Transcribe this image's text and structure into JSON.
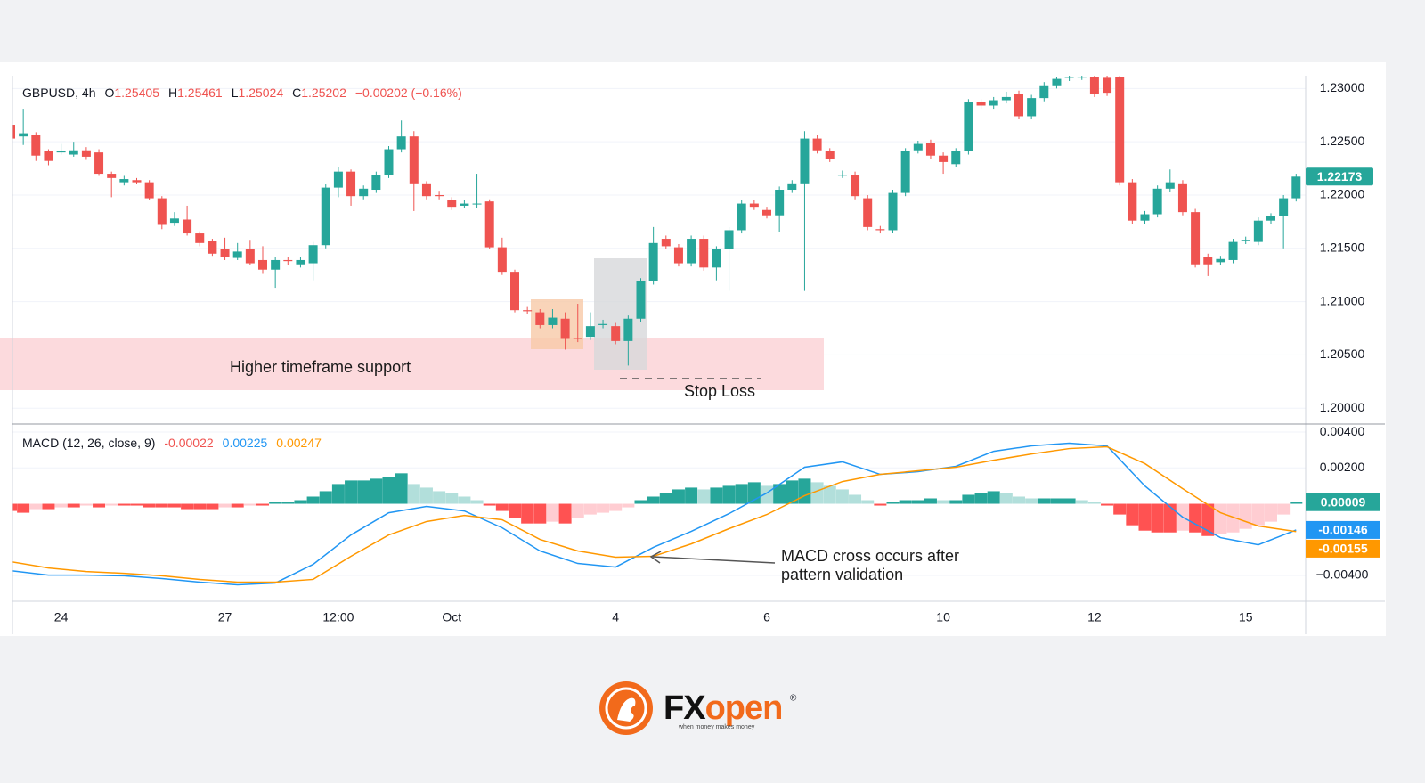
{
  "chart_data": [
    {
      "type": "candlestick",
      "legend": {
        "symbol": "GBPUSD, 4h",
        "ohlc": [
          {
            "label": "O",
            "value": "1.25405"
          },
          {
            "label": "H",
            "value": "1.25461"
          },
          {
            "label": "L",
            "value": "1.25024"
          },
          {
            "label": "C",
            "value": "1.25202"
          }
        ],
        "change": "−0.00202 (−0.16%)"
      },
      "categories": [
        null,
        null,
        null,
        null,
        "24",
        null,
        null,
        null,
        null,
        null,
        null,
        null,
        null,
        null,
        null,
        null,
        null,
        "27",
        null,
        null,
        null,
        null,
        null,
        null,
        null,
        null,
        "12:00",
        null,
        null,
        null,
        null,
        null,
        null,
        null,
        null,
        "Oct",
        null,
        null,
        null,
        null,
        null,
        null,
        null,
        null,
        null,
        null,
        null,
        null,
        "4",
        null,
        null,
        null,
        null,
        null,
        null,
        null,
        null,
        null,
        null,
        null,
        "6",
        null,
        null,
        null,
        null,
        null,
        null,
        null,
        null,
        null,
        null,
        null,
        null,
        null,
        "10",
        null,
        null,
        null,
        null,
        null,
        null,
        null,
        null,
        null,
        null,
        null,
        "12",
        null,
        null,
        null,
        null,
        null,
        null,
        null,
        null,
        null,
        null,
        null,
        "15",
        null,
        null,
        null,
        null
      ],
      "open": [
        1.2266,
        1.2255,
        1.2256,
        1.2241,
        1.224,
        1.2238,
        1.2242,
        1.224,
        1.222,
        1.2212,
        1.2214,
        1.2212,
        1.2197,
        1.2174,
        1.2177,
        1.2164,
        1.2157,
        1.2149,
        1.2141,
        1.2149,
        1.2139,
        1.213,
        1.2139,
        1.2135,
        1.2136,
        1.2153,
        1.2207,
        1.2222,
        1.2199,
        1.2205,
        1.2219,
        1.2243,
        1.2255,
        1.2211,
        1.22,
        1.2195,
        1.219,
        1.2192,
        1.2194,
        1.2151,
        1.2128,
        1.2092,
        1.209,
        1.2078,
        1.2084,
        1.2066,
        1.2067,
        1.2078,
        1.2077,
        1.2063,
        1.2084,
        1.2119,
        1.2159,
        1.2151,
        1.2136,
        1.2159,
        1.2132,
        1.2149,
        1.2167,
        1.2192,
        1.2186,
        1.2181,
        1.2205,
        1.2211,
        1.2253,
        1.2241,
        1.2219,
        1.2219,
        1.2197,
        1.2168,
        1.2167,
        1.2202,
        1.2242,
        1.2249,
        1.2237,
        1.2229,
        1.2241,
        1.2287,
        1.2284,
        1.2289,
        1.2295,
        1.2274,
        1.2291,
        1.2303,
        1.231,
        1.2311,
        1.2311,
        1.231,
        1.2311,
        1.2212,
        1.2176,
        1.2182,
        1.2206,
        1.2211,
        1.2184,
        1.2142,
        1.2137,
        1.2139,
        1.2157,
        1.2156,
        1.2176,
        1.218,
        1.2197
      ],
      "high": [
        1.227,
        1.2281,
        1.2259,
        1.2243,
        1.2248,
        1.225,
        1.2245,
        1.2243,
        1.2222,
        1.2218,
        1.2216,
        1.2214,
        1.2199,
        1.2184,
        1.219,
        1.2166,
        1.2159,
        1.216,
        1.2155,
        1.2158,
        1.2152,
        1.2142,
        1.2142,
        1.2142,
        1.2156,
        1.221,
        1.2226,
        1.2224,
        1.2209,
        1.2222,
        1.2246,
        1.227,
        1.226,
        1.2213,
        1.2204,
        1.2198,
        1.2195,
        1.222,
        1.2196,
        1.216,
        1.213,
        1.2095,
        1.2093,
        1.2093,
        1.209,
        1.2098,
        1.209,
        1.2083,
        1.208,
        1.2087,
        1.2122,
        1.217,
        1.2162,
        1.2154,
        1.2162,
        1.2162,
        1.2152,
        1.217,
        1.2195,
        1.2195,
        1.2189,
        1.2208,
        1.2214,
        1.226,
        1.2256,
        1.2244,
        1.2223,
        1.2222,
        1.22,
        1.2171,
        1.2205,
        1.2244,
        1.2251,
        1.2252,
        1.224,
        1.2244,
        1.229,
        1.229,
        1.2292,
        1.2297,
        1.2298,
        1.2294,
        1.2306,
        1.2311,
        1.2312,
        1.2312,
        1.2312,
        1.2312,
        1.2312,
        1.2215,
        1.2185,
        1.2209,
        1.2224,
        1.2214,
        1.2187,
        1.2145,
        1.2143,
        1.2159,
        1.2161,
        1.2179,
        1.2183,
        1.22,
        1.222
      ],
      "low": [
        1.225,
        1.2247,
        1.2232,
        1.2228,
        1.2238,
        1.2236,
        1.2233,
        1.2218,
        1.2198,
        1.2209,
        1.221,
        1.2195,
        1.2168,
        1.2171,
        1.2162,
        1.2152,
        1.2143,
        1.2139,
        1.2139,
        1.2134,
        1.2126,
        1.2113,
        1.2134,
        1.2132,
        1.212,
        1.215,
        1.2198,
        1.219,
        1.2196,
        1.2202,
        1.2216,
        1.224,
        1.2185,
        1.2196,
        1.2196,
        1.2186,
        1.2188,
        1.2188,
        1.2149,
        1.2125,
        1.209,
        1.2088,
        1.2075,
        1.2075,
        1.2055,
        1.2062,
        1.2064,
        1.2075,
        1.206,
        1.204,
        1.2081,
        1.2116,
        1.2149,
        1.2133,
        1.2133,
        1.2129,
        1.212,
        1.211,
        1.2164,
        1.2186,
        1.2178,
        1.2165,
        1.2202,
        1.211,
        1.2239,
        1.2231,
        1.2216,
        1.2196,
        1.2167,
        1.2164,
        1.2164,
        1.2199,
        1.2239,
        1.2234,
        1.222,
        1.2226,
        1.2238,
        1.2281,
        1.2281,
        1.2286,
        1.2271,
        1.2271,
        1.2288,
        1.23,
        1.2307,
        1.2308,
        1.2292,
        1.2293,
        1.2209,
        1.2173,
        1.2173,
        1.2179,
        1.2203,
        1.2181,
        1.2132,
        1.2124,
        1.2134,
        1.2136,
        1.2154,
        1.2153,
        1.2173,
        1.215,
        1.2194
      ],
      "close": [
        1.2253,
        1.2258,
        1.2237,
        1.2232,
        1.2241,
        1.2242,
        1.2236,
        1.222,
        1.2216,
        1.2215,
        1.2212,
        1.2197,
        1.2172,
        1.2178,
        1.2164,
        1.2155,
        1.2145,
        1.2142,
        1.2147,
        1.2136,
        1.213,
        1.2139,
        1.2138,
        1.2139,
        1.2153,
        1.2207,
        1.2222,
        1.2199,
        1.2206,
        1.2219,
        1.2243,
        1.2255,
        1.2211,
        1.2199,
        1.2199,
        1.2189,
        1.2192,
        1.2192,
        1.2151,
        1.2128,
        1.2092,
        1.2091,
        1.2078,
        1.2085,
        1.2065,
        1.2065,
        1.2077,
        1.2079,
        1.2063,
        1.2084,
        1.2119,
        1.2155,
        1.2152,
        1.2136,
        1.2159,
        1.2132,
        1.2149,
        1.2167,
        1.2192,
        1.2189,
        1.2181,
        1.2205,
        1.2211,
        1.2253,
        1.2242,
        1.2234,
        1.2219,
        1.2199,
        1.217,
        1.2167,
        1.2202,
        1.2241,
        1.2248,
        1.2237,
        1.2231,
        1.2241,
        1.2287,
        1.2284,
        1.2289,
        1.2292,
        1.2274,
        1.2291,
        1.2303,
        1.2309,
        1.2311,
        1.2311,
        1.2295,
        1.2296,
        1.2212,
        1.2176,
        1.2182,
        1.2206,
        1.2212,
        1.2184,
        1.2135,
        1.2135,
        1.214,
        1.2156,
        1.2158,
        1.2176,
        1.218,
        1.2197,
        1.22173
      ],
      "up_color": "#26a69a",
      "down_color": "#ef5350",
      "ylim": [
        1.1986,
        1.2312
      ],
      "yticks": [
        {
          "value": 1.2,
          "label": "1.20000"
        },
        {
          "value": 1.205,
          "label": "1.20500"
        },
        {
          "value": 1.21,
          "label": "1.21000"
        },
        {
          "value": 1.215,
          "label": "1.21500"
        },
        {
          "value": 1.22,
          "label": "1.22000"
        },
        {
          "value": 1.225,
          "label": "1.22500"
        },
        {
          "value": 1.23,
          "label": "1.23000"
        }
      ],
      "grid": true,
      "annotations": {
        "support": "Higher timeframe support",
        "stop_loss": "Stop Loss"
      }
    },
    {
      "type": "macd",
      "title": "MACD (12, 26, close, 9)",
      "header_values": [
        -0.00022,
        0.00225,
        0.00247
      ],
      "header_colors": [
        "#ef5350",
        "#2196f3",
        "#ff9800"
      ],
      "histogram": {
        "values": [
          -0.0004,
          -0.0005,
          -0.0003,
          -0.0003,
          -0.0002,
          -0.0002,
          -0.0001,
          -0.0002,
          -0.0001,
          -0.0001,
          -0.0001,
          -0.0002,
          -0.0002,
          -0.0002,
          -0.0003,
          -0.0003,
          -0.0003,
          -0.0002,
          -0.0002,
          -0.0001,
          -0.0001,
          0.0001,
          0.0001,
          0.0002,
          0.0004,
          0.0007,
          0.0011,
          0.0013,
          0.0013,
          0.0014,
          0.0015,
          0.0017,
          0.0011,
          0.0009,
          0.0007,
          0.0006,
          0.0004,
          0.0002,
          -0.0001,
          -0.0004,
          -0.0008,
          -0.0011,
          -0.0011,
          -0.001,
          -0.0011,
          -0.0008,
          -0.0006,
          -0.0005,
          -0.0004,
          -0.0002,
          0.0002,
          0.0004,
          0.0006,
          0.0008,
          0.0009,
          0.0008,
          0.0009,
          0.001,
          0.0011,
          0.0012,
          0.001,
          0.0011,
          0.0013,
          0.0014,
          0.0012,
          0.001,
          0.0008,
          0.0005,
          0.0002,
          -0.0001,
          0.0001,
          0.0002,
          0.0002,
          0.0003,
          0.0002,
          0.0002,
          0.0005,
          0.0006,
          0.0007,
          0.0006,
          0.0004,
          0.0003,
          0.0003,
          0.0003,
          0.0003,
          0.0002,
          0.0001,
          -0.0001,
          -0.0006,
          -0.0012,
          -0.0015,
          -0.0016,
          -0.0016,
          -0.0015,
          -0.0016,
          -0.0018,
          -0.0017,
          -0.0016,
          -0.0014,
          -0.0012,
          -0.001,
          -0.0006,
          9e-05
        ],
        "colors": [
          "#26a69a",
          "#b2dfdb",
          "#ffcdd2",
          "#ff5252"
        ]
      },
      "x": [
        0,
        3,
        6,
        9,
        12,
        15,
        18,
        21,
        24,
        27,
        30,
        33,
        36,
        39,
        42,
        45,
        48,
        51,
        54,
        57,
        60,
        63,
        66,
        69,
        72,
        75,
        78,
        81,
        84,
        87,
        90,
        93,
        96,
        99,
        102
      ],
      "series": [
        {
          "color": "#2196f3",
          "values": [
            -0.00373,
            -0.00398,
            -0.00398,
            -0.00402,
            -0.00417,
            -0.00437,
            -0.00452,
            -0.00442,
            -0.00338,
            -0.00174,
            -0.0005,
            -0.00015,
            -0.0004,
            -0.00134,
            -0.00263,
            -0.00333,
            -0.00353,
            -0.00243,
            -0.00154,
            -0.00055,
            0.0006,
            0.00204,
            0.00234,
            0.00164,
            0.00179,
            0.00209,
            0.00293,
            0.00323,
            0.00338,
            0.00323,
            0.00099,
            -0.00075,
            -0.00189,
            -0.00229,
            -0.00146
          ]
        },
        {
          "color": "#ff9800",
          "values": [
            -0.00323,
            -0.00358,
            -0.00378,
            -0.00388,
            -0.00402,
            -0.00422,
            -0.00437,
            -0.00437,
            -0.00422,
            -0.00293,
            -0.00174,
            -0.00099,
            -0.00065,
            -0.00089,
            -0.00199,
            -0.00263,
            -0.00298,
            -0.00293,
            -0.00224,
            -0.00139,
            -0.0006,
            0.00045,
            0.00124,
            0.00164,
            0.00184,
            0.00204,
            0.00243,
            0.00278,
            0.00308,
            0.00318,
            0.00224,
            0.00084,
            -0.0005,
            -0.00124,
            -0.00155
          ]
        }
      ],
      "ylim": [
        -0.00544,
        0.0044
      ],
      "yticks": [
        {
          "value": 0.004,
          "label": "0.00400"
        },
        {
          "value": 0.002,
          "label": "0.00200"
        },
        {
          "value": -0.004,
          "label": "−0.00400"
        }
      ],
      "annotations": {
        "macd_cross": [
          "MACD cross occurs after",
          "pattern validation"
        ]
      }
    }
  ],
  "logo": {
    "prefix": "FX",
    "suffix": "open",
    "registered": "®",
    "tagline": "when money makes money"
  }
}
